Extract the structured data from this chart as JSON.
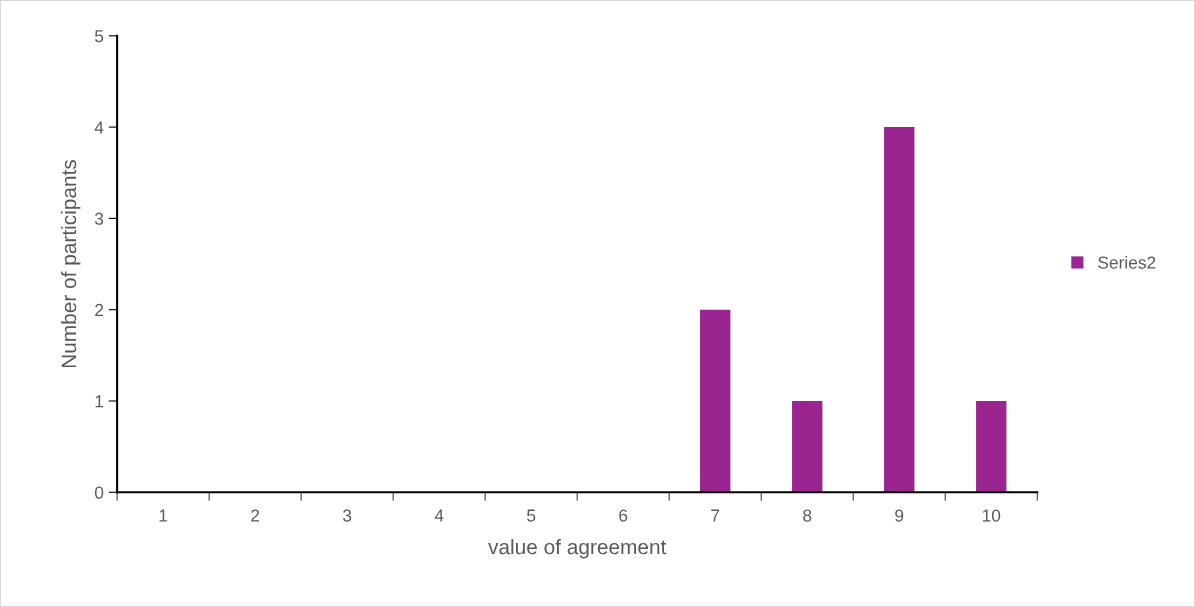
{
  "chart_data": {
    "type": "bar",
    "xlabel": "value of agreement",
    "ylabel": "Number of participants",
    "categories": [
      "1",
      "2",
      "3",
      "4",
      "5",
      "6",
      "7",
      "8",
      "9",
      "10"
    ],
    "series": [
      {
        "name": "Series2",
        "color": "#9b2590",
        "values": [
          0,
          0,
          0,
          0,
          0,
          0,
          2,
          1,
          4,
          1
        ]
      }
    ],
    "ylim": [
      0,
      5
    ],
    "yticks": [
      0,
      1,
      2,
      3,
      4,
      5
    ],
    "grid": false,
    "legend": "right"
  }
}
